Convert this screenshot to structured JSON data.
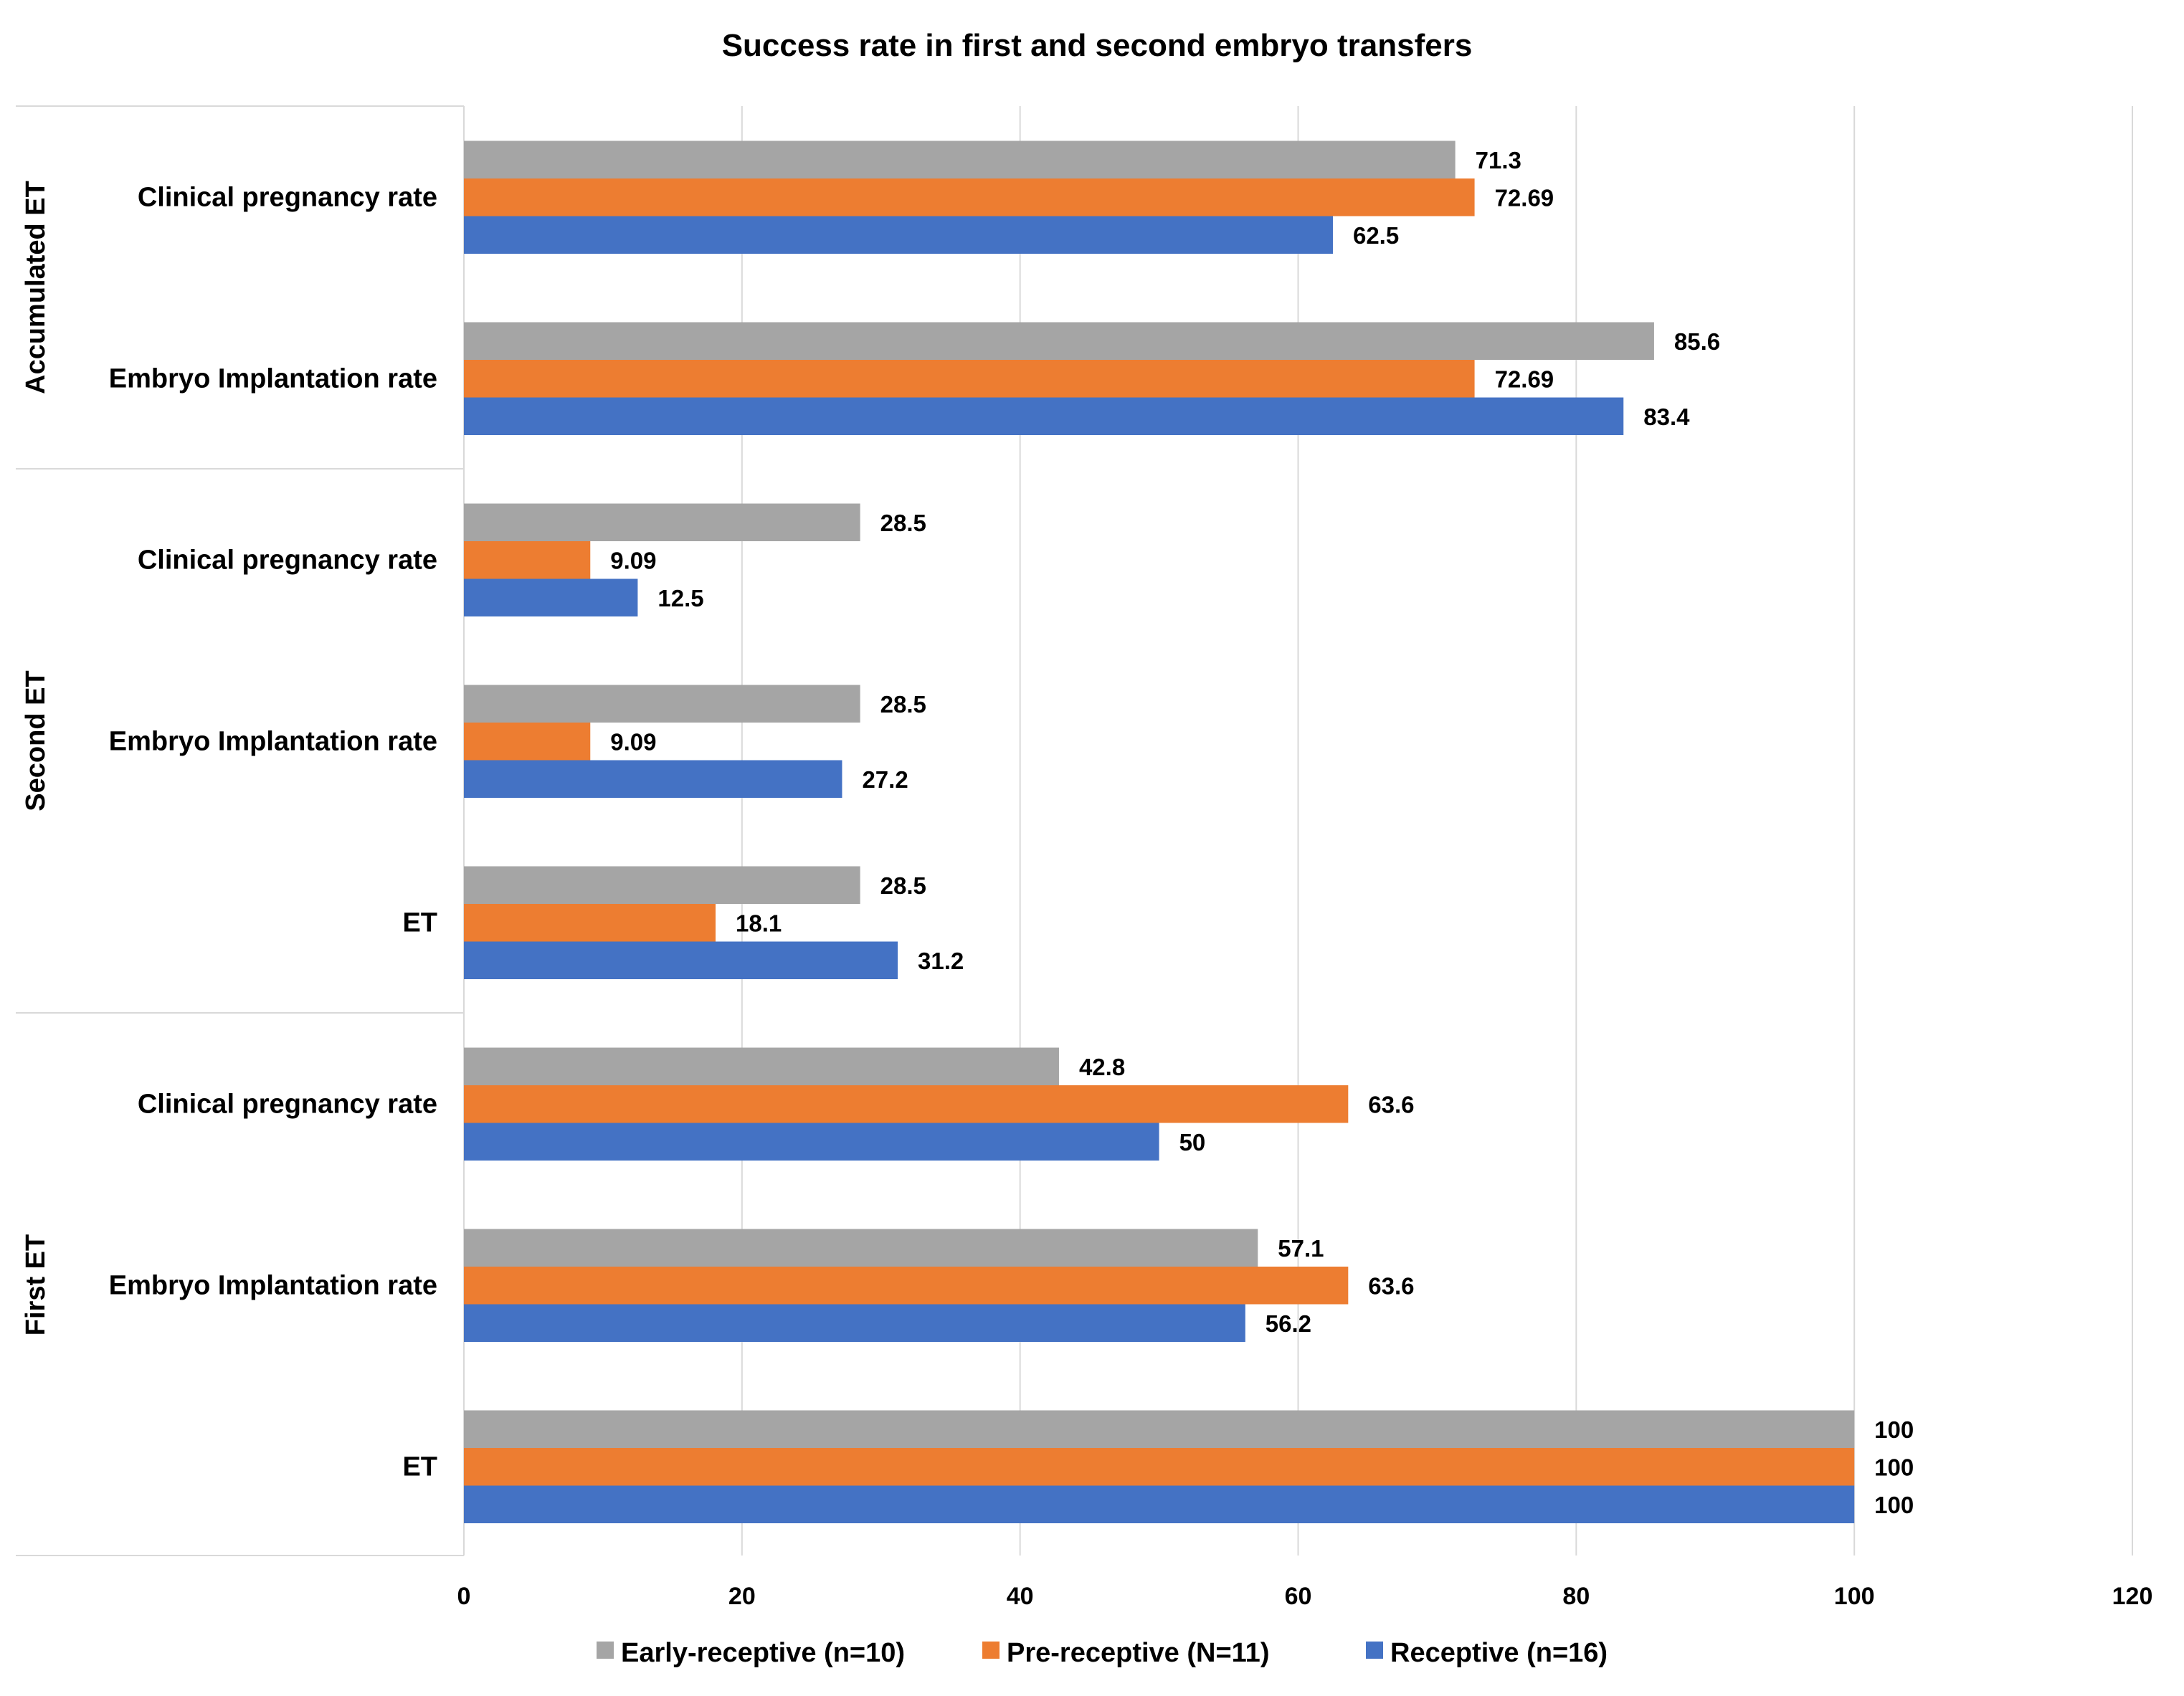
{
  "chart_data": {
    "type": "bar",
    "orientation": "horizontal",
    "title": "Success rate in first and second embryo transfers",
    "xlabel": "",
    "ylabel": "",
    "xlim": [
      0,
      120
    ],
    "xticks": [
      0,
      20,
      40,
      60,
      80,
      100,
      120
    ],
    "grid": true,
    "legend_position": "bottom",
    "groups": [
      {
        "label": "Accumulated ET",
        "categories": [
          "Clinical pregnancy rate",
          "Embryo Implantation rate"
        ]
      },
      {
        "label": "Second  ET",
        "categories": [
          "Clinical pregnancy rate",
          "Embryo Implantation rate",
          "ET"
        ]
      },
      {
        "label": "First ET",
        "categories": [
          "Clinical pregnancy rate",
          "Embryo Implantation rate",
          "ET"
        ]
      }
    ],
    "series": [
      {
        "name": "Early-receptive (n=10)",
        "color": "#a5a5a5",
        "values": [
          71.3,
          85.6,
          28.5,
          28.5,
          28.5,
          42.8,
          57.1,
          100
        ],
        "labels": [
          "71.3",
          "85.6",
          "28.5",
          "28.5",
          "28.5",
          "42.8",
          "57.1",
          "100"
        ]
      },
      {
        "name": "Pre-receptive (N=11)",
        "color": "#ed7d31",
        "values": [
          72.69,
          72.69,
          9.09,
          9.09,
          18.1,
          63.6,
          63.6,
          100
        ],
        "labels": [
          "72.69",
          "72.69",
          "9.09",
          "9.09",
          "18.1",
          "63.6",
          "63.6",
          "100"
        ]
      },
      {
        "name": "Receptive (n=16)",
        "color": "#4472c4",
        "values": [
          62.5,
          83.4,
          12.5,
          27.2,
          31.2,
          50,
          56.2,
          100
        ],
        "labels": [
          "62.5",
          "83.4",
          "12.5",
          "27.2",
          "31.2",
          "50",
          "56.2",
          "100"
        ]
      }
    ]
  }
}
